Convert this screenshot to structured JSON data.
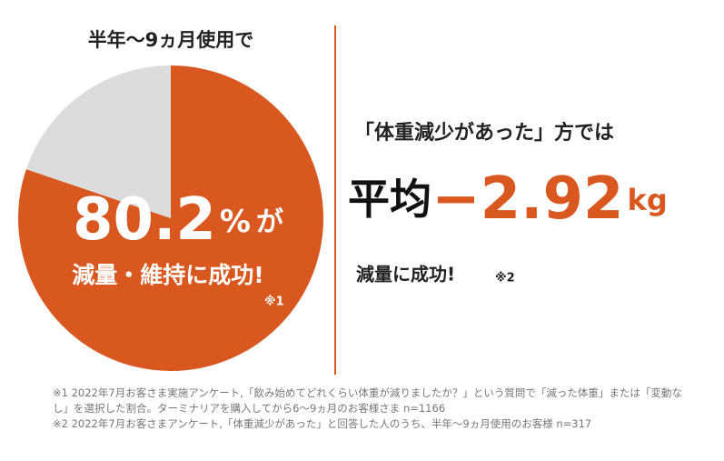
{
  "chart_data": {
    "type": "pie",
    "title": "半年〜9ヵ月使用で",
    "categories": [
      "減量・維持に成功!",
      null
    ],
    "values": [
      80.2,
      19.8
    ],
    "colors": [
      "#d9581f",
      "#dcdcdc"
    ],
    "value_unit": "%",
    "value_suffix": "が",
    "note_mark": "※1"
  },
  "highlight": {
    "heading": "「体重減少があった」方では",
    "prefix": "平均",
    "value": "−2.92",
    "unit": "kg",
    "caption": "減量に成功!",
    "note_mark": "※2"
  },
  "footnotes": [
    "※1 2022年7月お客さま実施アンケート,「飲み始めてどれくらい体重が減りましたか？」という質問で「減った体重」または「変動なし」を選択した割合。ターミナリアを購入してから6〜9ヵ月のお客様さま n=1166",
    "※2 2022年7月お客さまアンケート,「体重減少があった」と回答した人のうち、半年〜9ヵ月使用のお客様 n=317"
  ]
}
